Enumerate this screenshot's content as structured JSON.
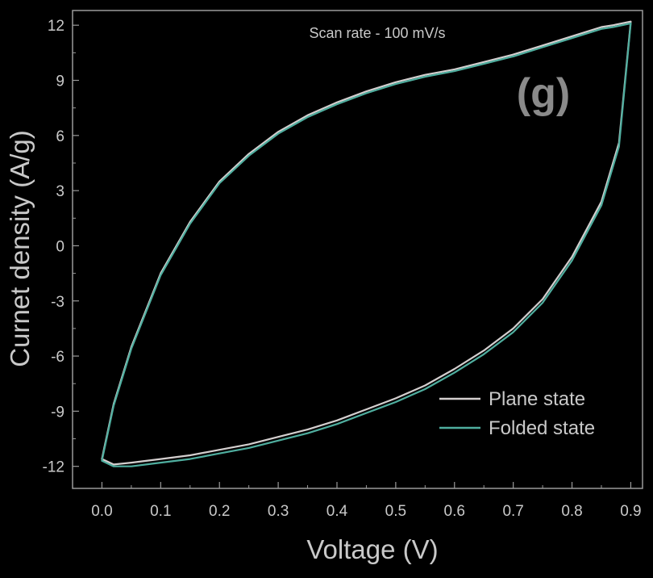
{
  "chart_data": {
    "type": "line",
    "xlabel": "Voltage (V)",
    "ylabel": "Curnet density (A/g)",
    "annotation": "Scan rate - 100 mV/s",
    "panel_label": "(g)",
    "xlim": [
      -0.05,
      0.92
    ],
    "ylim": [
      -13.2,
      12.8
    ],
    "xticks": [
      "0.0",
      "0.1",
      "0.2",
      "0.3",
      "0.4",
      "0.5",
      "0.6",
      "0.7",
      "0.8",
      "0.9"
    ],
    "yticks": [
      "12",
      "9",
      "6",
      "3",
      "0",
      "-3",
      "-6",
      "-9",
      "-12"
    ],
    "grid": false,
    "legend_position": "bottom-right",
    "background": "#000000",
    "axis_color": "#9a9a9a",
    "series": [
      {
        "name": "Plane state",
        "color": "#d4cfcf",
        "x": [
          0.0,
          0.02,
          0.05,
          0.1,
          0.15,
          0.2,
          0.25,
          0.3,
          0.35,
          0.4,
          0.45,
          0.5,
          0.55,
          0.6,
          0.65,
          0.7,
          0.75,
          0.8,
          0.85,
          0.87,
          0.9,
          0.88,
          0.85,
          0.8,
          0.75,
          0.7,
          0.65,
          0.6,
          0.55,
          0.5,
          0.45,
          0.4,
          0.35,
          0.3,
          0.25,
          0.2,
          0.15,
          0.1,
          0.05,
          0.02,
          0.0
        ],
        "y": [
          -11.6,
          -8.6,
          -5.5,
          -1.5,
          1.3,
          3.5,
          5.0,
          6.2,
          7.1,
          7.8,
          8.4,
          8.9,
          9.3,
          9.6,
          10.0,
          10.4,
          10.9,
          11.4,
          11.9,
          12.0,
          12.2,
          5.6,
          2.4,
          -0.6,
          -2.9,
          -4.5,
          -5.7,
          -6.7,
          -7.6,
          -8.3,
          -8.9,
          -9.5,
          -10.0,
          -10.4,
          -10.8,
          -11.1,
          -11.4,
          -11.6,
          -11.8,
          -11.9,
          -11.6
        ]
      },
      {
        "name": "Folded state",
        "color": "#4fae9f",
        "x": [
          0.0,
          0.02,
          0.05,
          0.1,
          0.15,
          0.2,
          0.25,
          0.3,
          0.35,
          0.4,
          0.45,
          0.5,
          0.55,
          0.6,
          0.65,
          0.7,
          0.75,
          0.8,
          0.85,
          0.87,
          0.9,
          0.88,
          0.85,
          0.8,
          0.75,
          0.7,
          0.65,
          0.6,
          0.55,
          0.5,
          0.45,
          0.4,
          0.35,
          0.3,
          0.25,
          0.2,
          0.15,
          0.1,
          0.05,
          0.02,
          0.0
        ],
        "y": [
          -11.7,
          -8.7,
          -5.6,
          -1.6,
          1.2,
          3.4,
          4.9,
          6.1,
          7.0,
          7.7,
          8.3,
          8.8,
          9.2,
          9.5,
          9.9,
          10.3,
          10.8,
          11.3,
          11.8,
          11.9,
          12.1,
          5.4,
          2.2,
          -0.8,
          -3.1,
          -4.7,
          -5.9,
          -6.9,
          -7.8,
          -8.5,
          -9.1,
          -9.7,
          -10.2,
          -10.6,
          -11.0,
          -11.3,
          -11.6,
          -11.8,
          -12.0,
          -12.0,
          -11.7
        ]
      }
    ]
  }
}
